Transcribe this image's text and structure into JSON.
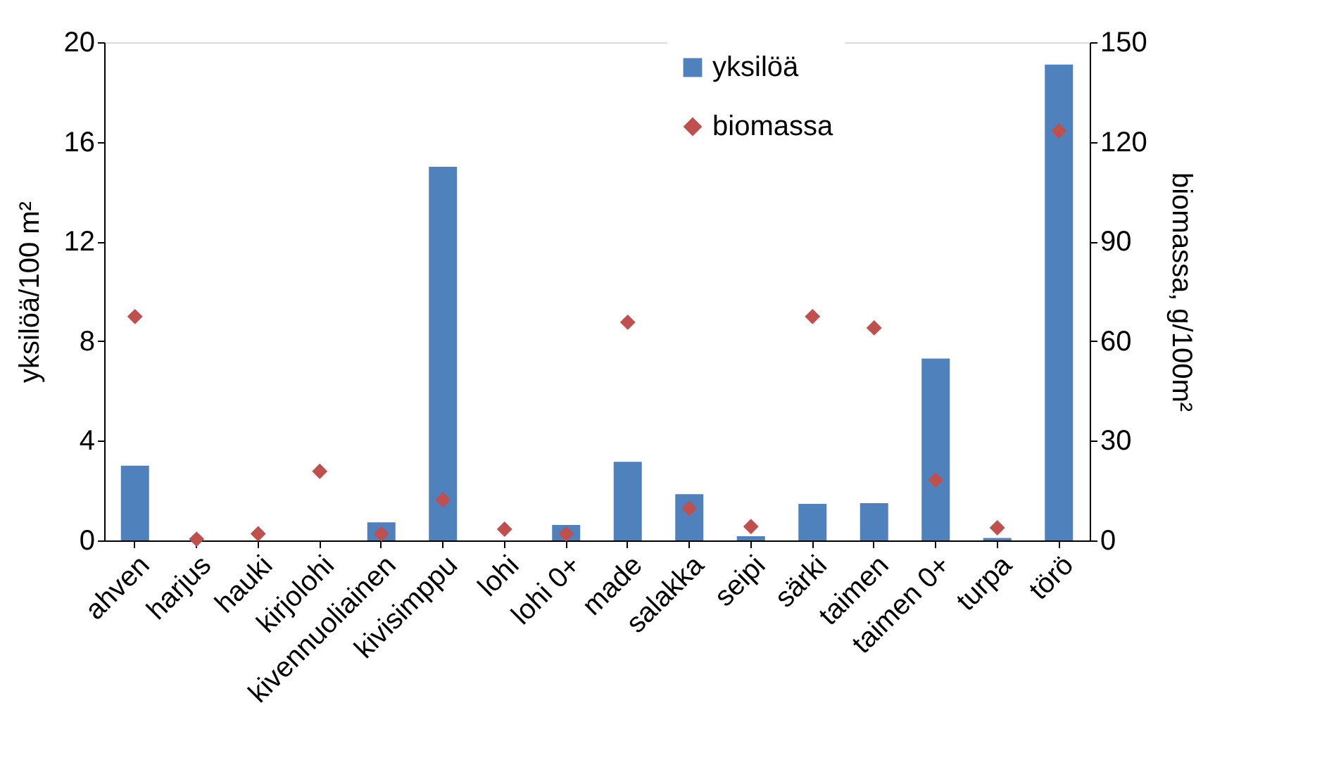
{
  "chart_data": {
    "type": "bar",
    "categories": [
      "ahven",
      "harjus",
      "hauki",
      "kirjolohi",
      "kivennuoliainen",
      "kivisimppu",
      "lohi",
      "lohi 0+",
      "made",
      "salakka",
      "seipi",
      "särki",
      "taimen",
      "taimen 0+",
      "turpa",
      "törö"
    ],
    "ylabel": "yksilöä/100 m²",
    "y2label": "biomassa, g/100m²",
    "ylim": [
      0,
      20
    ],
    "yticks": [
      0,
      4,
      8,
      12,
      16,
      20
    ],
    "y2lim": [
      0,
      150
    ],
    "y2ticks": [
      0,
      30,
      60,
      90,
      120,
      150
    ],
    "grid": false,
    "legend": "top",
    "series": [
      {
        "name": "yksilöä",
        "color": "#4f81bd",
        "values": [
          3.0,
          0,
          0,
          0,
          0.73,
          15.0,
          0,
          0.62,
          3.16,
          1.86,
          0.17,
          1.47,
          1.5,
          7.3,
          0.1,
          19.1
        ]
      },
      {
        "name": "biomassa",
        "type": "scatter",
        "axis": "y2",
        "marker": "diamond",
        "color": "#c0504d",
        "values": [
          67.4,
          0.4,
          2,
          20.8,
          2,
          12.3,
          3.4,
          2,
          65.7,
          9.7,
          4.2,
          67.4,
          64,
          18.2,
          3.8,
          123.3
        ]
      }
    ]
  }
}
